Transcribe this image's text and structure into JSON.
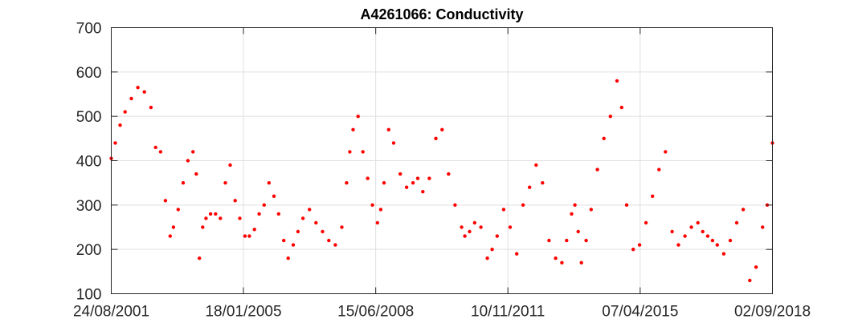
{
  "chart_data": {
    "type": "scatter",
    "title": "A4261066: Conductivity",
    "xlabel": "",
    "ylabel": "",
    "x_axis_kind": "date",
    "xlim": [
      "2001-08-24",
      "2018-09-02"
    ],
    "ylim": [
      100,
      700
    ],
    "x_ticks": [
      "2001-08-24",
      "2005-01-18",
      "2008-06-15",
      "2011-11-10",
      "2015-04-07",
      "2018-09-02"
    ],
    "x_tick_labels": [
      "24/08/2001",
      "18/01/2005",
      "15/06/2008",
      "10/11/2011",
      "07/04/2015",
      "02/09/2018"
    ],
    "y_ticks": [
      100,
      200,
      300,
      400,
      500,
      600,
      700
    ],
    "y_tick_labels": [
      "100",
      "200",
      "300",
      "400",
      "500",
      "600",
      "700"
    ],
    "grid": true,
    "marker_color": "#ff0000",
    "series": [
      {
        "x": [
          "2001-08-24",
          "2001-10-01",
          "2001-11-15",
          "2002-01-01",
          "2002-03-01",
          "2002-05-01",
          "2002-07-01",
          "2002-09-01",
          "2002-10-15",
          "2002-12-01",
          "2003-01-15",
          "2003-03-01",
          "2003-04-01",
          "2003-05-15",
          "2003-07-01",
          "2003-08-15",
          "2003-10-01",
          "2003-11-01",
          "2003-12-01",
          "2004-01-01",
          "2004-02-01",
          "2004-03-15",
          "2004-05-01",
          "2004-06-15",
          "2004-08-01",
          "2004-09-15",
          "2004-11-01",
          "2004-12-15",
          "2005-02-01",
          "2005-03-15",
          "2005-05-01",
          "2005-06-15",
          "2005-08-01",
          "2005-09-15",
          "2005-11-01",
          "2005-12-15",
          "2006-02-01",
          "2006-03-15",
          "2006-05-01",
          "2006-06-15",
          "2006-08-01",
          "2006-10-01",
          "2006-12-01",
          "2007-02-01",
          "2007-04-01",
          "2007-06-01",
          "2007-08-01",
          "2007-09-15",
          "2007-10-15",
          "2007-11-15",
          "2008-01-01",
          "2008-02-15",
          "2008-04-01",
          "2008-05-15",
          "2008-07-01",
          "2008-08-01",
          "2008-09-01",
          "2008-10-15",
          "2008-12-01",
          "2009-02-01",
          "2009-04-01",
          "2009-06-01",
          "2009-07-15",
          "2009-09-01",
          "2009-11-01",
          "2010-01-01",
          "2010-03-01",
          "2010-05-01",
          "2010-07-01",
          "2010-09-01",
          "2010-10-01",
          "2010-11-15",
          "2011-01-01",
          "2011-03-01",
          "2011-05-01",
          "2011-06-15",
          "2011-08-01",
          "2011-10-01",
          "2011-12-01",
          "2012-02-01",
          "2012-04-01",
          "2012-06-01",
          "2012-08-01",
          "2012-10-01",
          "2012-12-01",
          "2013-02-01",
          "2013-04-01",
          "2013-05-15",
          "2013-07-01",
          "2013-08-01",
          "2013-09-01",
          "2013-10-01",
          "2013-11-15",
          "2014-01-01",
          "2014-03-01",
          "2014-05-01",
          "2014-07-01",
          "2014-09-01",
          "2014-10-15",
          "2014-12-01",
          "2015-02-01",
          "2015-04-01",
          "2015-06-01",
          "2015-08-01",
          "2015-10-01",
          "2015-12-01",
          "2016-02-01",
          "2016-04-01",
          "2016-06-01",
          "2016-08-01",
          "2016-10-01",
          "2016-11-15",
          "2017-01-01",
          "2017-02-15",
          "2017-04-01",
          "2017-06-01",
          "2017-08-01",
          "2017-10-01",
          "2017-12-01",
          "2018-02-01",
          "2018-04-01",
          "2018-06-01",
          "2018-07-15",
          "2018-09-02"
        ],
        "y": [
          405,
          440,
          480,
          510,
          540,
          565,
          555,
          520,
          430,
          420,
          310,
          230,
          250,
          290,
          350,
          400,
          420,
          370,
          180,
          250,
          270,
          280,
          280,
          270,
          350,
          390,
          310,
          270,
          230,
          230,
          245,
          280,
          300,
          350,
          320,
          280,
          220,
          180,
          210,
          240,
          270,
          290,
          260,
          240,
          220,
          210,
          250,
          350,
          420,
          470,
          500,
          420,
          360,
          300,
          260,
          290,
          350,
          470,
          440,
          370,
          340,
          350,
          360,
          330,
          360,
          450,
          470,
          370,
          300,
          250,
          230,
          240,
          260,
          250,
          180,
          200,
          230,
          290,
          250,
          190,
          300,
          340,
          390,
          350,
          220,
          180,
          170,
          220,
          280,
          300,
          240,
          170,
          220,
          290,
          380,
          450,
          500,
          580,
          520,
          300,
          200,
          210,
          260,
          320,
          380,
          420,
          240,
          210,
          230,
          250,
          260,
          240,
          230,
          220,
          210,
          190,
          220,
          260,
          290,
          130,
          160,
          250,
          300,
          440
        ]
      }
    ]
  }
}
